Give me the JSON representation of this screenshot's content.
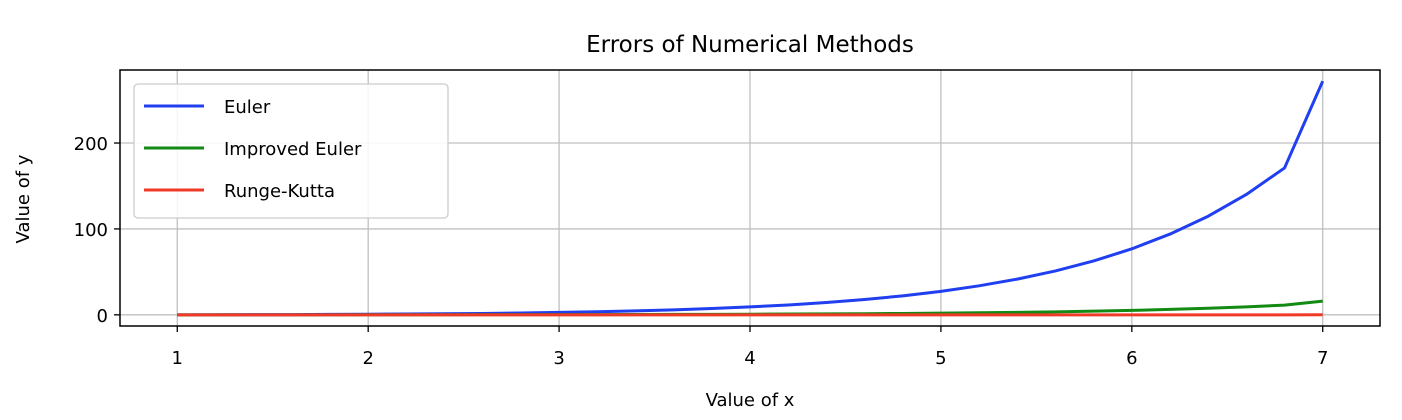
{
  "chart_data": {
    "type": "line",
    "title": "Errors of Numerical Methods",
    "xlabel": "Value of x",
    "ylabel": "Value of y",
    "xlim": [
      0.7,
      7.3
    ],
    "ylim": [
      -13,
      285
    ],
    "xticks": [
      1,
      2,
      3,
      4,
      5,
      6,
      7
    ],
    "yticks": [
      0,
      100,
      200
    ],
    "grid": true,
    "legend": "top-left",
    "x": [
      1.0,
      1.2,
      1.4,
      1.6,
      1.8,
      2.0,
      2.2,
      2.4,
      2.6,
      2.8,
      3.0,
      3.2,
      3.4,
      3.6,
      3.8,
      4.0,
      4.2,
      4.4,
      4.6,
      4.8,
      5.0,
      5.2,
      5.4,
      5.6,
      5.8,
      6.0,
      6.2,
      6.4,
      6.6,
      6.8,
      7.0
    ],
    "series": [
      {
        "name": "Euler",
        "color": "#1f3ff0",
        "values": [
          0.0,
          0.1,
          0.2,
          0.3,
          0.5,
          0.7,
          0.9,
          1.2,
          1.6,
          2.1,
          2.8,
          3.6,
          4.6,
          5.8,
          7.3,
          9.2,
          11.5,
          14.3,
          17.8,
          22.1,
          27.3,
          33.8,
          41.6,
          51.1,
          62.7,
          76.8,
          94.0,
          114.8,
          140.1,
          171.0,
          272.0
        ]
      },
      {
        "name": "Improved Euler",
        "color": "#138a13",
        "values": [
          0.0,
          0.0,
          0.0,
          0.0,
          0.0,
          0.1,
          0.1,
          0.1,
          0.2,
          0.2,
          0.3,
          0.3,
          0.4,
          0.5,
          0.6,
          0.7,
          0.9,
          1.1,
          1.3,
          1.6,
          2.0,
          2.4,
          2.9,
          3.5,
          4.3,
          5.2,
          6.3,
          7.7,
          9.3,
          11.3,
          16.0
        ]
      },
      {
        "name": "Runge-Kutta",
        "color": "#f03a28",
        "values": [
          0.0,
          0.0,
          0.0,
          0.0,
          0.0,
          0.0,
          0.0,
          0.0,
          0.0,
          0.0,
          0.0,
          0.0,
          0.0,
          0.0,
          0.0,
          0.0,
          0.0,
          0.0,
          0.0,
          0.0,
          0.0,
          0.0,
          0.0,
          0.0,
          0.0,
          0.0,
          0.0,
          0.0,
          0.0,
          0.0,
          0.1
        ]
      }
    ]
  }
}
